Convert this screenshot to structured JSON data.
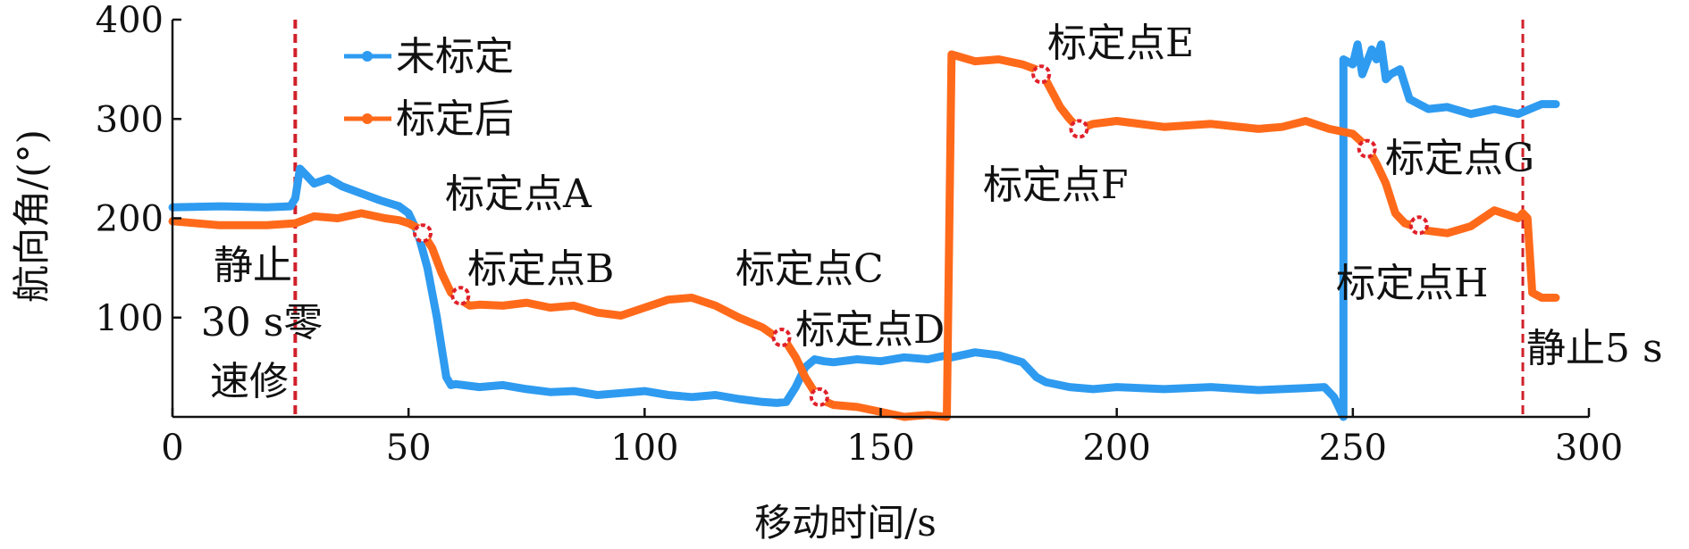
{
  "chart_data": {
    "type": "line",
    "xlabel": "移动时间/s",
    "ylabel": "航向角/(°)",
    "xlim": [
      0,
      300
    ],
    "ylim": [
      0,
      400
    ],
    "xticks": [
      0,
      50,
      100,
      150,
      200,
      250,
      300
    ],
    "yticks": [
      100,
      200,
      300,
      400
    ],
    "legend": {
      "placement": "top-left"
    },
    "colors": {
      "uncalibrated": "#2E9BF0",
      "calibrated": "#FF6A1A",
      "marker": "#E0202A",
      "vline": "#D0202A"
    },
    "series": [
      {
        "name": "未标定",
        "color": "#2E9BF0",
        "x": [
          0,
          10,
          20,
          25,
          26,
          27,
          28,
          30,
          33,
          36,
          40,
          44,
          48,
          50,
          52,
          54,
          56,
          57,
          58,
          59,
          60,
          65,
          70,
          75,
          80,
          85,
          90,
          95,
          100,
          105,
          110,
          115,
          120,
          125,
          128,
          130,
          132,
          134,
          136,
          138,
          140,
          145,
          150,
          155,
          160,
          164,
          165,
          170,
          175,
          180,
          183,
          185,
          190,
          195,
          200,
          210,
          220,
          230,
          240,
          244,
          246,
          247,
          248,
          248.01,
          250,
          251,
          252,
          254,
          255,
          256,
          257,
          258,
          260,
          262,
          264,
          266,
          270,
          275,
          280,
          285,
          290,
          293
        ],
        "y": [
          211,
          212,
          211,
          212,
          220,
          250,
          245,
          235,
          240,
          232,
          225,
          218,
          212,
          205,
          185,
          150,
          100,
          70,
          40,
          32,
          33,
          30,
          32,
          28,
          25,
          26,
          22,
          24,
          26,
          22,
          20,
          22,
          18,
          15,
          14,
          15,
          30,
          50,
          58,
          56,
          55,
          58,
          56,
          60,
          58,
          62,
          60,
          65,
          62,
          55,
          40,
          35,
          30,
          28,
          30,
          28,
          30,
          27,
          29,
          30,
          20,
          10,
          0,
          360,
          355,
          375,
          345,
          370,
          360,
          375,
          340,
          345,
          350,
          320,
          315,
          310,
          312,
          305,
          310,
          305,
          315,
          315
        ]
      },
      {
        "name": "标定后",
        "color": "#FF6A1A",
        "x": [
          0,
          10,
          20,
          26,
          30,
          35,
          40,
          45,
          48,
          50,
          52,
          53,
          55,
          57,
          59,
          61,
          63,
          65,
          70,
          75,
          80,
          85,
          90,
          95,
          100,
          105,
          110,
          115,
          120,
          125,
          128,
          130,
          132,
          134,
          136,
          137,
          140,
          145,
          150,
          155,
          160,
          164,
          165,
          165.01,
          170,
          175,
          180,
          184,
          186,
          188,
          190,
          192,
          195,
          200,
          210,
          220,
          230,
          235,
          240,
          245,
          250,
          253,
          255,
          257,
          259,
          261,
          263,
          265,
          270,
          275,
          280,
          285,
          286,
          287,
          288,
          290,
          293
        ],
        "y": [
          197,
          193,
          193,
          195,
          202,
          200,
          205,
          200,
          198,
          195,
          190,
          185,
          170,
          145,
          125,
          118,
          112,
          113,
          112,
          115,
          110,
          112,
          105,
          102,
          110,
          118,
          120,
          112,
          100,
          90,
          80,
          75,
          60,
          40,
          25,
          18,
          12,
          10,
          5,
          0,
          2,
          0,
          365,
          365,
          358,
          360,
          355,
          348,
          330,
          312,
          300,
          290,
          295,
          298,
          292,
          295,
          290,
          292,
          298,
          290,
          285,
          272,
          255,
          235,
          205,
          195,
          192,
          188,
          185,
          192,
          208,
          200,
          205,
          200,
          125,
          120,
          120
        ]
      }
    ],
    "calibration_points": [
      {
        "x": 53,
        "y": 185
      },
      {
        "x": 61,
        "y": 122
      },
      {
        "x": 129,
        "y": 80
      },
      {
        "x": 137,
        "y": 20
      },
      {
        "x": 184,
        "y": 345
      },
      {
        "x": 192,
        "y": 290
      },
      {
        "x": 253,
        "y": 270
      },
      {
        "x": 264,
        "y": 193
      }
    ],
    "vertical_lines": [
      26,
      286
    ],
    "annotations": {
      "pA": "标定点A",
      "pB": "标定点B",
      "pC": "标定点C",
      "pD": "标定点D",
      "pE": "标定点E",
      "pF": "标定点F",
      "pG": "标定点G",
      "pH": "标定点H",
      "static_30_l1": "静止",
      "static_30_l2": "30 s零",
      "static_30_l3": "速修",
      "static_5": "静止5 s"
    }
  }
}
